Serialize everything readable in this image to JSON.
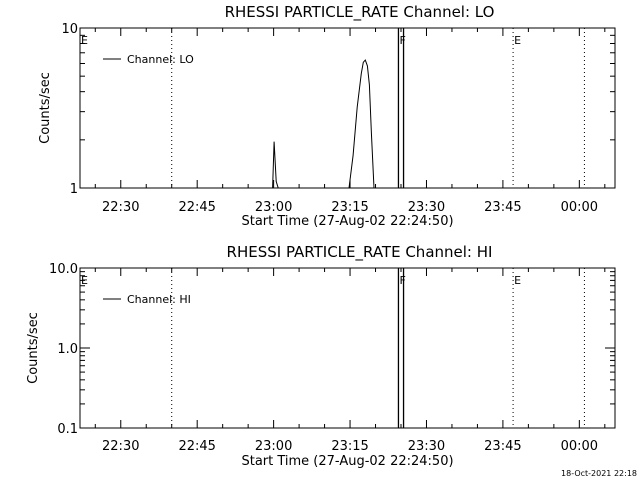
{
  "footer": {
    "timestamp": "18-Oct-2021 22:18"
  },
  "chart_data": [
    {
      "type": "line",
      "title": "RHESSI PARTICLE_RATE Channel: LO",
      "xlabel": "Start Time (27-Aug-02 22:24:50)",
      "ylabel": "Counts/sec",
      "y_scale": "log",
      "ylim": [
        1,
        10
      ],
      "y_ticks": [
        {
          "value": 1,
          "label": "1"
        },
        {
          "value": 10,
          "label": "10"
        }
      ],
      "xlim": [
        "22:22",
        "00:07"
      ],
      "x_ticks": [
        "22:30",
        "22:45",
        "23:00",
        "23:15",
        "23:30",
        "23:45",
        "00:00"
      ],
      "legend": {
        "position": "top-left",
        "entries": [
          "Channel: LO"
        ]
      },
      "markers": [
        {
          "label": "E",
          "x": "22:22",
          "style": "none"
        },
        {
          "label": "",
          "x": "22:40",
          "style": "dotted"
        },
        {
          "label": "F",
          "x": "23:24.5",
          "style": "solid"
        },
        {
          "label": "",
          "x": "23:25.5",
          "style": "solid"
        },
        {
          "label": "E",
          "x": "23:47",
          "style": "dotted"
        },
        {
          "label": "",
          "x": "00:01",
          "style": "dotted"
        }
      ],
      "series": [
        {
          "name": "Channel: LO",
          "x": [
            "22:59.8",
            "23:00.1",
            "23:00.5",
            "23:00.9",
            "23:14.8",
            "23:15.6",
            "23:16.4",
            "23:17.2",
            "23:17.6",
            "23:18.0",
            "23:18.4",
            "23:18.8",
            "23:19.2",
            "23:19.7"
          ],
          "y": [
            1,
            1.95,
            1.1,
            1,
            1,
            1.6,
            3.2,
            5.2,
            6.1,
            6.3,
            5.8,
            4.4,
            2.2,
            1
          ]
        }
      ]
    },
    {
      "type": "line",
      "title": "RHESSI PARTICLE_RATE Channel: HI",
      "xlabel": "Start Time (27-Aug-02 22:24:50)",
      "ylabel": "Counts/sec",
      "y_scale": "log",
      "ylim": [
        0.1,
        10
      ],
      "y_ticks": [
        {
          "value": 0.1,
          "label": "0.1"
        },
        {
          "value": 1,
          "label": "1.0"
        },
        {
          "value": 10,
          "label": "10.0"
        }
      ],
      "xlim": [
        "22:22",
        "00:07"
      ],
      "x_ticks": [
        "22:30",
        "22:45",
        "23:00",
        "23:15",
        "23:30",
        "23:45",
        "00:00"
      ],
      "legend": {
        "position": "top-left",
        "entries": [
          "Channel: HI"
        ]
      },
      "markers": [
        {
          "label": "E",
          "x": "22:22",
          "style": "none"
        },
        {
          "label": "",
          "x": "22:40",
          "style": "dotted"
        },
        {
          "label": "F",
          "x": "23:24.5",
          "style": "solid"
        },
        {
          "label": "",
          "x": "23:25.5",
          "style": "solid"
        },
        {
          "label": "E",
          "x": "23:47",
          "style": "dotted"
        },
        {
          "label": "",
          "x": "00:01",
          "style": "dotted"
        }
      ],
      "series": [
        {
          "name": "Channel: HI",
          "x": [],
          "y": []
        }
      ]
    }
  ]
}
